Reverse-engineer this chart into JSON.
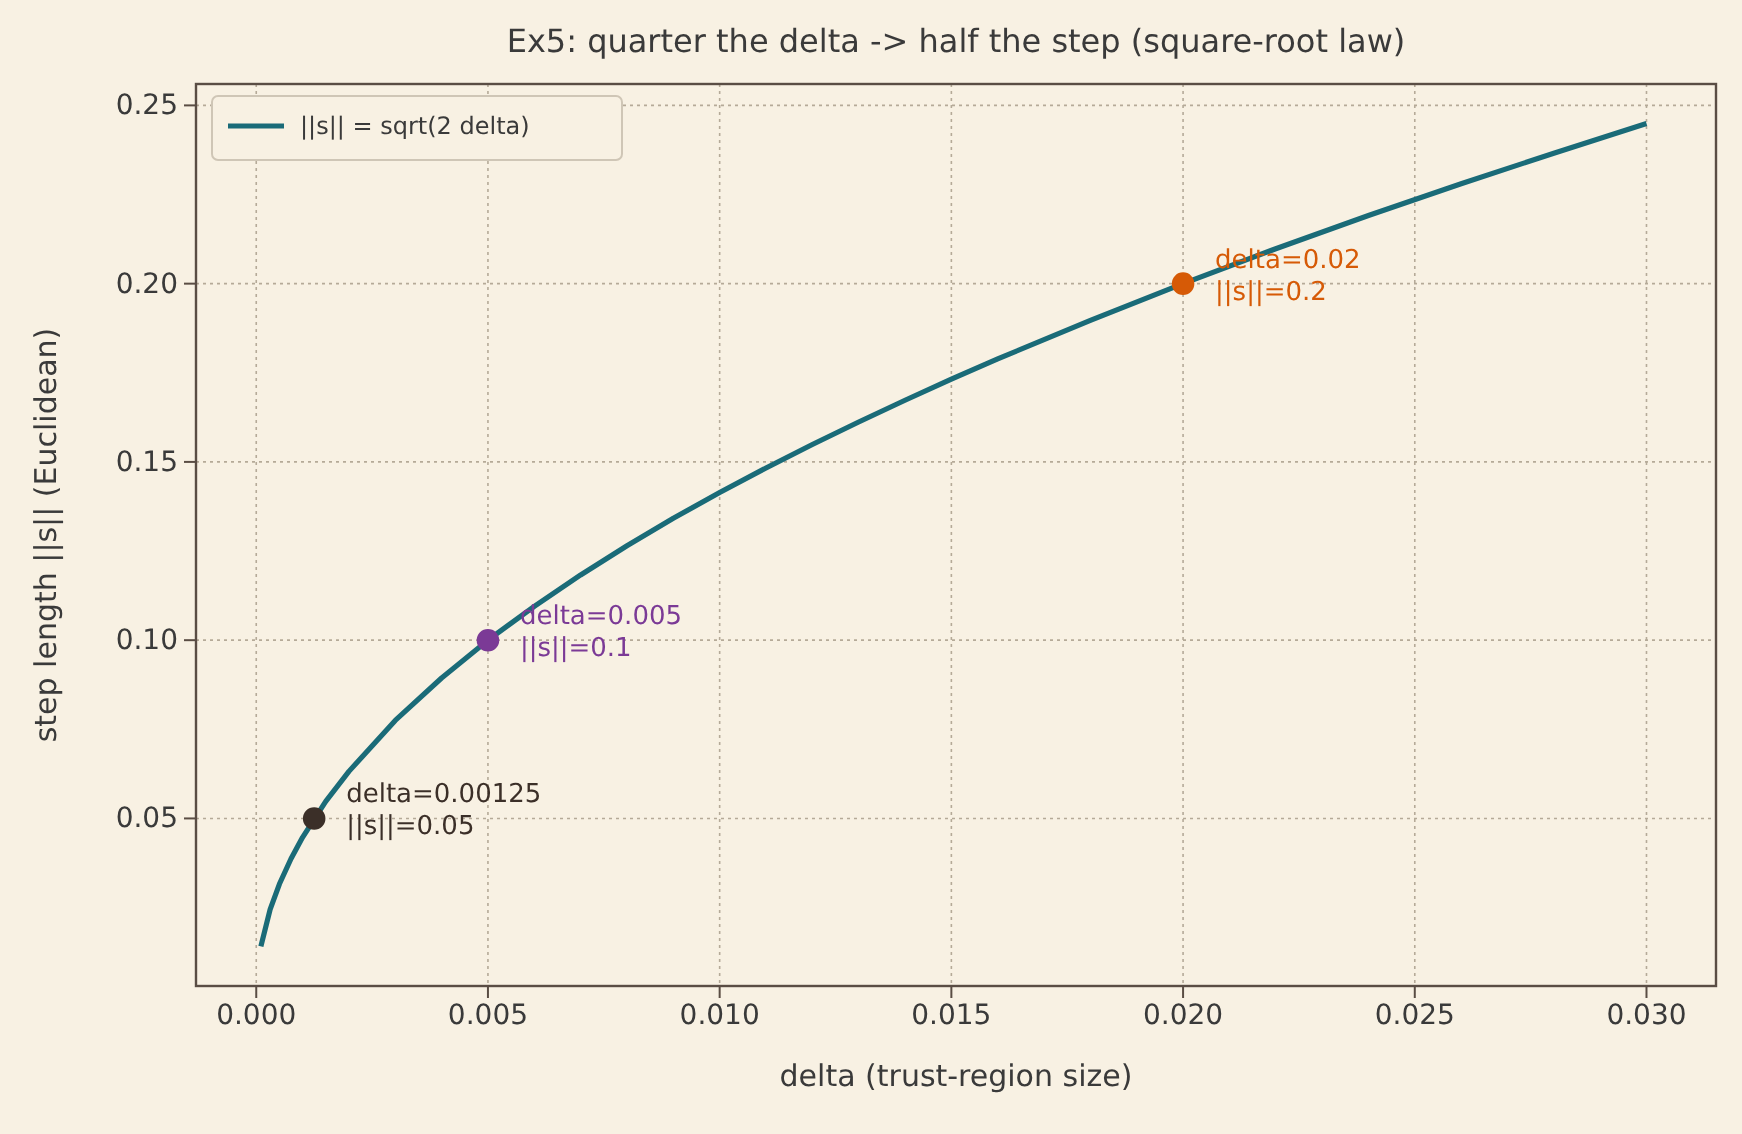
{
  "chart_data": {
    "type": "line",
    "title": "Ex5: quarter the delta -> half the step (square-root law)",
    "xlabel": "delta (trust-region size)",
    "ylabel": "step length ||s|| (Euclidean)",
    "xlim": [
      -0.0013,
      0.0315
    ],
    "ylim": [
      0.003,
      0.256
    ],
    "xticks": [
      {
        "value": 0,
        "label": "0.000"
      },
      {
        "value": 0.005,
        "label": "0.005"
      },
      {
        "value": 0.01,
        "label": "0.010"
      },
      {
        "value": 0.015,
        "label": "0.015"
      },
      {
        "value": 0.02,
        "label": "0.020"
      },
      {
        "value": 0.025,
        "label": "0.025"
      },
      {
        "value": 0.03,
        "label": "0.030"
      }
    ],
    "yticks": [
      {
        "value": 0.05,
        "label": "0.05"
      },
      {
        "value": 0.1,
        "label": "0.10"
      },
      {
        "value": 0.15,
        "label": "0.15"
      },
      {
        "value": 0.2,
        "label": "0.20"
      },
      {
        "value": 0.25,
        "label": "0.25"
      }
    ],
    "grid": true,
    "legend": "top left",
    "series": [
      {
        "name": "||s|| = sqrt(2 delta)",
        "color": "#1a6b78",
        "line_style": "solid",
        "x": [
          0.0001,
          0.0003,
          0.0005,
          0.00075,
          0.001,
          0.0015,
          0.002,
          0.003,
          0.004,
          0.005,
          0.006,
          0.007,
          0.008,
          0.009,
          0.01,
          0.011,
          0.012,
          0.013,
          0.014,
          0.015,
          0.016,
          0.018,
          0.02,
          0.022,
          0.024,
          0.026,
          0.028,
          0.03
        ],
        "values": [
          0.0141,
          0.0245,
          0.0316,
          0.0387,
          0.0447,
          0.0548,
          0.0632,
          0.0775,
          0.0894,
          0.1,
          0.1095,
          0.1183,
          0.1265,
          0.1342,
          0.1414,
          0.1483,
          0.1549,
          0.1612,
          0.1673,
          0.1732,
          0.1789,
          0.1897,
          0.2,
          0.2098,
          0.2191,
          0.228,
          0.2366,
          0.2449
        ]
      },
      {
        "type": "scatter",
        "marker": "circle",
        "color": "#3b2f28",
        "x": [
          0.00125
        ],
        "values": [
          0.05
        ]
      },
      {
        "type": "scatter",
        "marker": "circle",
        "color": "#7b3a96",
        "x": [
          0.005
        ],
        "values": [
          0.1
        ]
      },
      {
        "type": "scatter",
        "marker": "circle",
        "color": "#d65a06",
        "x": [
          0.02
        ],
        "values": [
          0.2
        ]
      }
    ],
    "annotations": [
      {
        "text": "delta=0.00125\n||s||=0.05",
        "x": 0.00125,
        "y": 0.05
      },
      {
        "text": "delta=0.005\n||s||=0.1",
        "x": 0.005,
        "y": 0.1
      },
      {
        "text": "delta=0.02\n||s||=0.2",
        "x": 0.02,
        "y": 0.2
      }
    ]
  }
}
